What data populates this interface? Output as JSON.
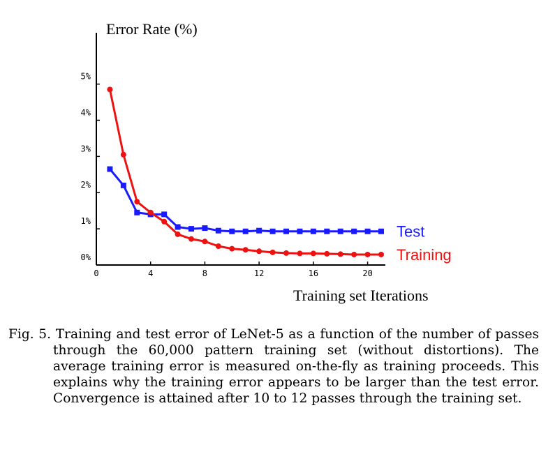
{
  "chart_data": {
    "type": "line",
    "ylabel": "Error Rate (%)",
    "xlabel": "Training set Iterations",
    "xlim": [
      0,
      21
    ],
    "ylim": [
      0,
      5.3
    ],
    "x_ticks": [
      "0",
      "4",
      "8",
      "12",
      "16",
      "20"
    ],
    "y_ticks": [
      "0%",
      "1%",
      "2%",
      "3%",
      "4%",
      "5%"
    ],
    "grid": false,
    "legend": "right, at end of each line",
    "x": [
      1,
      2,
      3,
      4,
      5,
      6,
      7,
      8,
      9,
      10,
      11,
      12,
      13,
      14,
      15,
      16,
      17,
      18,
      19,
      20,
      21
    ],
    "series": [
      {
        "name": "Test",
        "color": "#1a1aff",
        "marker": "square",
        "values": [
          2.65,
          2.2,
          1.45,
          1.4,
          1.4,
          1.05,
          1.0,
          1.02,
          0.95,
          0.93,
          0.93,
          0.95,
          0.93,
          0.93,
          0.93,
          0.93,
          0.93,
          0.93,
          0.93,
          0.93,
          0.93
        ]
      },
      {
        "name": "Training",
        "color": "#ee1111",
        "marker": "circle",
        "values": [
          4.85,
          3.05,
          1.75,
          1.45,
          1.2,
          0.85,
          0.72,
          0.65,
          0.52,
          0.45,
          0.42,
          0.38,
          0.35,
          0.33,
          0.32,
          0.32,
          0.31,
          0.3,
          0.29,
          0.29,
          0.29
        ]
      }
    ]
  },
  "caption": "Fig. 5.   Training and test error of LeNet-5 as a function of the number of passes through the 60,000 pattern training set (without distortions). The average training error is measured on-the-fly as training proceeds. This explains why the training error appears to be larger than the test error. Convergence is attained after 10 to 12 passes through the training set."
}
